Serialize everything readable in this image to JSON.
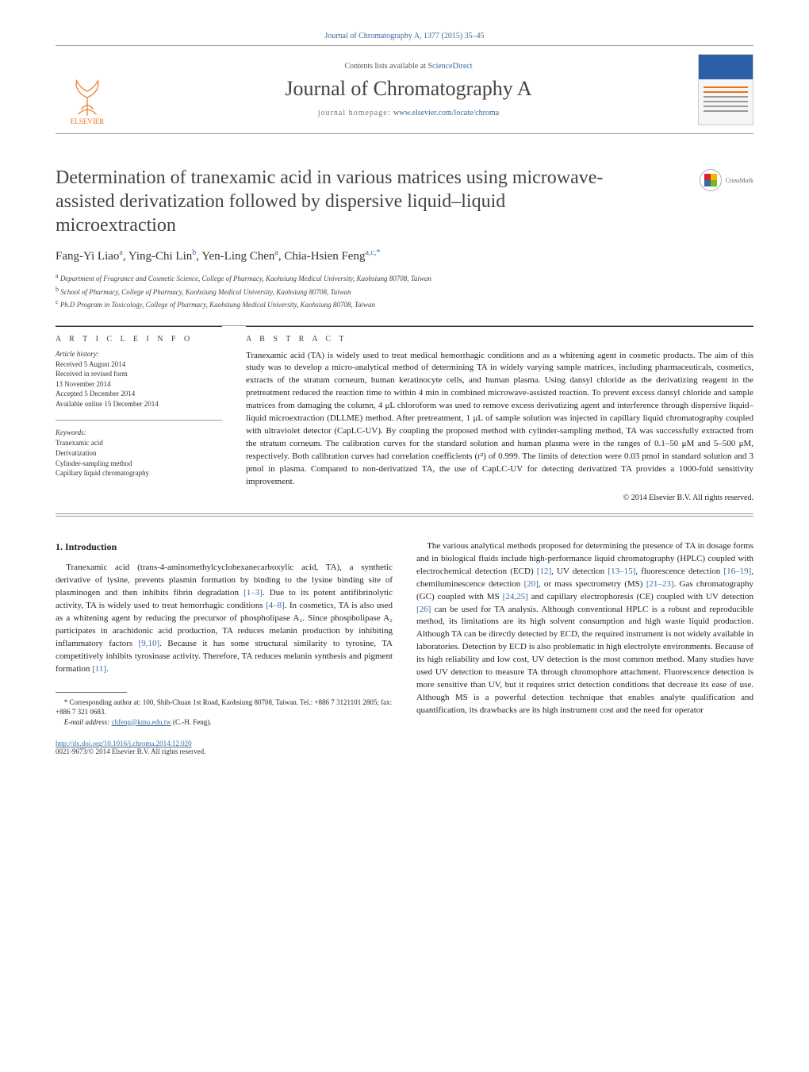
{
  "journal_header_link": "Journal of Chromatography A, 1377 (2015) 35–45",
  "contents_line_prefix": "Contents lists available at ",
  "contents_line_link": "ScienceDirect",
  "journal_name": "Journal of Chromatography A",
  "homepage_prefix": "journal homepage: ",
  "homepage_url": "www.elsevier.com/locate/chroma",
  "publisher_name": "ELSEVIER",
  "crossmark_label": "CrossMark",
  "paper_title": "Determination of tranexamic acid in various matrices using microwave-assisted derivatization followed by dispersive liquid–liquid microextraction",
  "authors": [
    {
      "name": "Fang-Yi Liao",
      "aff": "a"
    },
    {
      "name": "Ying-Chi Lin",
      "aff": "b"
    },
    {
      "name": "Yen-Ling Chen",
      "aff": "a"
    },
    {
      "name": "Chia-Hsien Feng",
      "aff": "a,c,*"
    }
  ],
  "affiliations": [
    {
      "key": "a",
      "text": "Department of Fragrance and Cosmetic Science, College of Pharmacy, Kaohsiung Medical University, Kaohsiung 80708, Taiwan"
    },
    {
      "key": "b",
      "text": "School of Pharmacy, College of Pharmacy, Kaohsiung Medical University, Kaohsiung 80708, Taiwan"
    },
    {
      "key": "c",
      "text": "Ph.D Program in Toxicology, College of Pharmacy, Kaohsiung Medical University, Kaohsiung 80708, Taiwan"
    }
  ],
  "article_info_label": "A R T I C L E   I N F O",
  "abstract_label": "A B S T R A C T",
  "history_label": "Article history:",
  "history_lines": [
    "Received 5 August 2014",
    "Received in revised form",
    "13 November 2014",
    "Accepted 5 December 2014",
    "Available online 15 December 2014"
  ],
  "keywords_label": "Keywords:",
  "keywords": [
    "Tranexamic acid",
    "Derivatization",
    "Cylinder-sampling method",
    "Capillary liquid chromatography"
  ],
  "abstract_text": "Tranexamic acid (TA) is widely used to treat medical hemorrhagic conditions and as a whitening agent in cosmetic products. The aim of this study was to develop a micro-analytical method of determining TA in widely varying sample matrices, including pharmaceuticals, cosmetics, extracts of the stratum corneum, human keratinocyte cells, and human plasma. Using dansyl chloride as the derivatizing reagent in the pretreatment reduced the reaction time to within 4 min in combined microwave-assisted reaction. To prevent excess dansyl chloride and sample matrices from damaging the column, 4 μL chloroform was used to remove excess derivatizing agent and interference through dispersive liquid–liquid microextraction (DLLME) method. After pretreatment, 1 μL of sample solution was injected in capillary liquid chromatography coupled with ultraviolet detector (CapLC-UV). By coupling the proposed method with cylinder-sampling method, TA was successfully extracted from the stratum corneum. The calibration curves for the standard solution and human plasma were in the ranges of 0.1–50 μM and 5–500 μM, respectively. Both calibration curves had correlation coefficients (r²) of 0.999. The limits of detection were 0.03 pmol in standard solution and 3 pmol in plasma. Compared to non-derivatized TA, the use of CapLC-UV for detecting derivatized TA provides a 1000-fold sensitivity improvement.",
  "copyright": "© 2014 Elsevier B.V. All rights reserved.",
  "intro_heading": "1. Introduction",
  "intro_para_1_pre": "Tranexamic acid (trans-4-aminomethylcyclohexanecarboxylic acid, TA), a synthetic derivative of lysine, prevents plasmin formation by binding to the lysine binding site of plasminogen and then inhibits fibrin degradation ",
  "ref_1_3": "[1–3]",
  "intro_para_1_mid1": ". Due to its potent antifibrinolytic activity, TA is widely used to treat hemorrhagic conditions ",
  "ref_4_8": "[4–8]",
  "intro_para_1_mid2": ". In cosmetics, TA is also used as a whitening agent by reducing the precursor of phospholipase A₂. Since phospholipase A₂ participates in arachidonic acid production, TA reduces melanin production by inhibiting inflammatory factors ",
  "ref_9_10": "[9,10]",
  "intro_para_1_mid3": ". Because it has some structural similarity to tyrosine, TA competitively inhibits tyrosinase activity. Therefore, TA reduces melanin synthesis and pigment formation ",
  "ref_11": "[11]",
  "intro_para_1_end": ".",
  "col2_pre": "The various analytical methods proposed for determining the presence of TA in dosage forms and in biological fluids include high-performance liquid chromatography (HPLC) coupled with electrochemical detection (ECD) ",
  "ref_12": "[12]",
  "col2_seg1": ", UV detection ",
  "ref_13_15": "[13–15]",
  "col2_seg2": ", fluorescence detection ",
  "ref_16_19": "[16–19]",
  "col2_seg3": ", chemiluminescence detection ",
  "ref_20": "[20]",
  "col2_seg4": ", or mass spectrometry (MS) ",
  "ref_21_23": "[21–23]",
  "col2_seg5": ". Gas chromatography (GC) coupled with MS ",
  "ref_24_25": "[24,25]",
  "col2_seg6": " and capillary electrophoresis (CE) coupled with UV detection ",
  "ref_26": "[26]",
  "col2_tail": " can be used for TA analysis. Although conventional HPLC is a robust and reproducible method, its limitations are its high solvent consumption and high waste liquid production. Although TA can be directly detected by ECD, the required instrument is not widely available in laboratories. Detection by ECD is also problematic in high electrolyte environments. Because of its high reliability and low cost, UV detection is the most common method. Many studies have used UV detection to measure TA through chromophore attachment. Fluorescence detection is more sensitive than UV, but it requires strict detection conditions that decrease its ease of use. Although MS is a powerful detection technique that enables analyte qualification and quantification, its drawbacks are its high instrument cost and the need for operator",
  "corr_author_note": "* Corresponding author at: 100, Shih-Chuan 1st Road, Kaohsiung 80708, Taiwan. Tel.: +886 7 3121101 2805; fax: +886 7 321 0683.",
  "email_label": "E-mail address: ",
  "email": "chfeng@kmu.edu.tw",
  "email_suffix": " (C.-H. Feng).",
  "doi": "http://dx.doi.org/10.1016/j.chroma.2014.12.020",
  "issn_line": "0021-9673/© 2014 Elsevier B.V. All rights reserved.",
  "colors": {
    "link": "#3b6aa0",
    "elsevier_orange": "#e9711c",
    "text": "#231f20",
    "heading_gray": "#444444"
  }
}
